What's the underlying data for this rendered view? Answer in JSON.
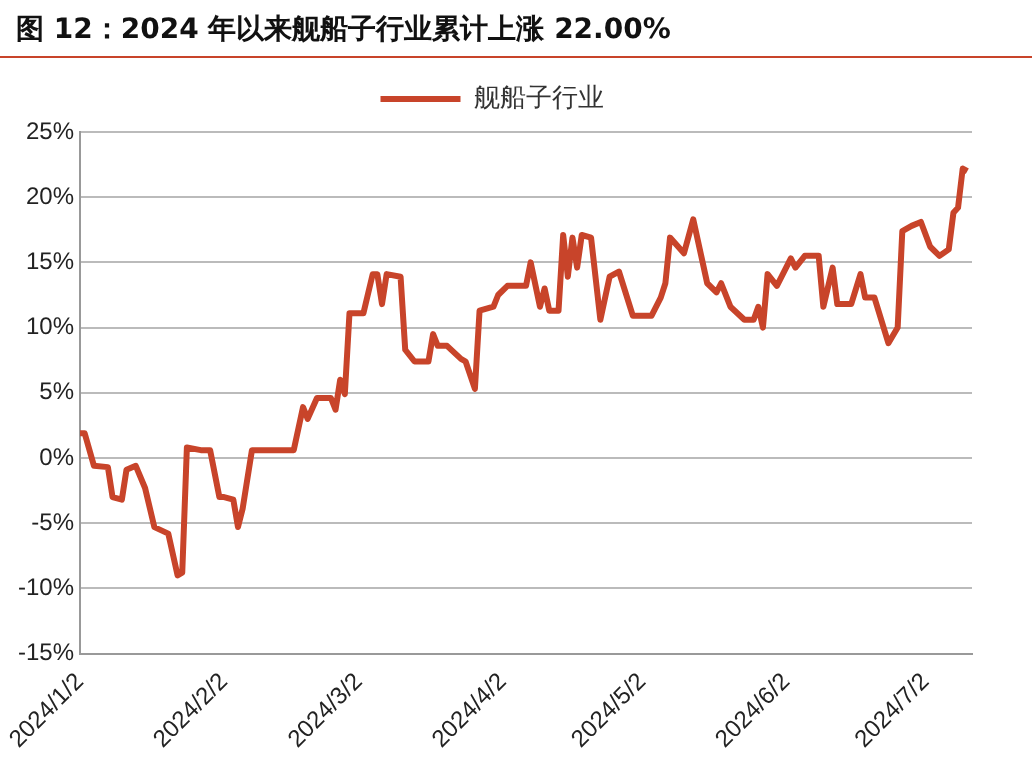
{
  "chart_data": {
    "type": "line",
    "title": "图 12：2024 年以来舰船子行业累计上涨 22.00%",
    "legend": "top",
    "grid": "y",
    "marker": "none",
    "line_style": "solid",
    "x": [
      "2024-01-02",
      "2024-01-03",
      "2024-01-05",
      "2024-01-08",
      "2024-01-09",
      "2024-01-11",
      "2024-01-12",
      "2024-01-14",
      "2024-01-16",
      "2024-01-18",
      "2024-01-21",
      "2024-01-23",
      "2024-01-24",
      "2024-01-25",
      "2024-01-28",
      "2024-01-30",
      "2024-02-01",
      "2024-02-02",
      "2024-02-04",
      "2024-02-05",
      "2024-02-06",
      "2024-02-08",
      "2024-02-17",
      "2024-02-19",
      "2024-02-20",
      "2024-02-22",
      "2024-02-25",
      "2024-02-26",
      "2024-02-27",
      "2024-02-28",
      "2024-02-29",
      "2024-03-03",
      "2024-03-05",
      "2024-03-06",
      "2024-03-07",
      "2024-03-08",
      "2024-03-11",
      "2024-03-12",
      "2024-03-14",
      "2024-03-17",
      "2024-03-18",
      "2024-03-19",
      "2024-03-21",
      "2024-03-24",
      "2024-03-25",
      "2024-03-27",
      "2024-03-28",
      "2024-03-31",
      "2024-04-01",
      "2024-04-03",
      "2024-04-07",
      "2024-04-08",
      "2024-04-10",
      "2024-04-11",
      "2024-04-12",
      "2024-04-14",
      "2024-04-15",
      "2024-04-16",
      "2024-04-17",
      "2024-04-18",
      "2024-04-19",
      "2024-04-21",
      "2024-04-23",
      "2024-04-25",
      "2024-04-27",
      "2024-04-30",
      "2024-05-04",
      "2024-05-06",
      "2024-05-07",
      "2024-05-08",
      "2024-05-11",
      "2024-05-13",
      "2024-05-16",
      "2024-05-18",
      "2024-05-19",
      "2024-05-21",
      "2024-05-24",
      "2024-05-26",
      "2024-05-27",
      "2024-05-28",
      "2024-05-29",
      "2024-05-31",
      "2024-06-03",
      "2024-06-04",
      "2024-06-06",
      "2024-06-09",
      "2024-06-10",
      "2024-06-12",
      "2024-06-13",
      "2024-06-16",
      "2024-06-18",
      "2024-06-19",
      "2024-06-21",
      "2024-06-24",
      "2024-06-26",
      "2024-06-27",
      "2024-06-29",
      "2024-07-01",
      "2024-07-03",
      "2024-07-05",
      "2024-07-07",
      "2024-07-08",
      "2024-07-09",
      "2024-07-10",
      "2024-07-11"
    ],
    "series": [
      {
        "name": "舰船子行业",
        "color": "#c8442a",
        "values": [
          1.9,
          1.9,
          -0.6,
          -0.7,
          -3.0,
          -3.2,
          -0.9,
          -0.6,
          -2.3,
          -5.3,
          -5.8,
          -9.0,
          -8.8,
          0.8,
          0.6,
          0.6,
          -3.0,
          -3.0,
          -3.2,
          -5.3,
          -3.9,
          0.6,
          0.6,
          3.9,
          3.0,
          4.6,
          4.6,
          3.7,
          6.0,
          4.9,
          11.1,
          11.1,
          14.1,
          14.1,
          11.8,
          14.1,
          13.9,
          8.3,
          7.4,
          7.4,
          9.5,
          8.6,
          8.6,
          7.6,
          7.4,
          5.3,
          11.3,
          11.6,
          12.5,
          13.2,
          13.2,
          15.0,
          11.6,
          13.0,
          11.3,
          11.3,
          17.1,
          13.9,
          16.9,
          14.6,
          17.1,
          16.9,
          10.6,
          13.9,
          14.3,
          10.9,
          10.9,
          12.3,
          13.4,
          16.9,
          15.7,
          18.3,
          13.4,
          12.7,
          13.4,
          11.6,
          10.6,
          10.6,
          11.6,
          10.0,
          14.1,
          13.2,
          15.3,
          14.6,
          15.5,
          15.5,
          11.6,
          14.6,
          11.8,
          11.8,
          14.1,
          12.3,
          12.3,
          8.8,
          10.0,
          17.4,
          17.8,
          18.1,
          16.2,
          15.5,
          16.0,
          18.8,
          19.2,
          22.2,
          22.0
        ]
      }
    ],
    "xlim": [
      "2024-01-02",
      "2024-07-12"
    ],
    "xticks": [
      {
        "value": "2024-01-02",
        "label": "2024/1/2"
      },
      {
        "value": "2024-02-02",
        "label": "2024/2/2"
      },
      {
        "value": "2024-03-02",
        "label": "2024/3/2"
      },
      {
        "value": "2024-04-02",
        "label": "2024/4/2"
      },
      {
        "value": "2024-05-02",
        "label": "2024/5/2"
      },
      {
        "value": "2024-06-02",
        "label": "2024/6/2"
      },
      {
        "value": "2024-07-02",
        "label": "2024/7/2"
      }
    ],
    "ylim": [
      -15,
      25
    ],
    "yticks": [
      {
        "value": -15,
        "label": "-15%"
      },
      {
        "value": -10,
        "label": "-10%"
      },
      {
        "value": -5,
        "label": "-5%"
      },
      {
        "value": 0,
        "label": "0%"
      },
      {
        "value": 5,
        "label": "5%"
      },
      {
        "value": 10,
        "label": "10%"
      },
      {
        "value": 15,
        "label": "15%"
      },
      {
        "value": 20,
        "label": "20%"
      },
      {
        "value": 25,
        "label": "25%"
      }
    ]
  }
}
